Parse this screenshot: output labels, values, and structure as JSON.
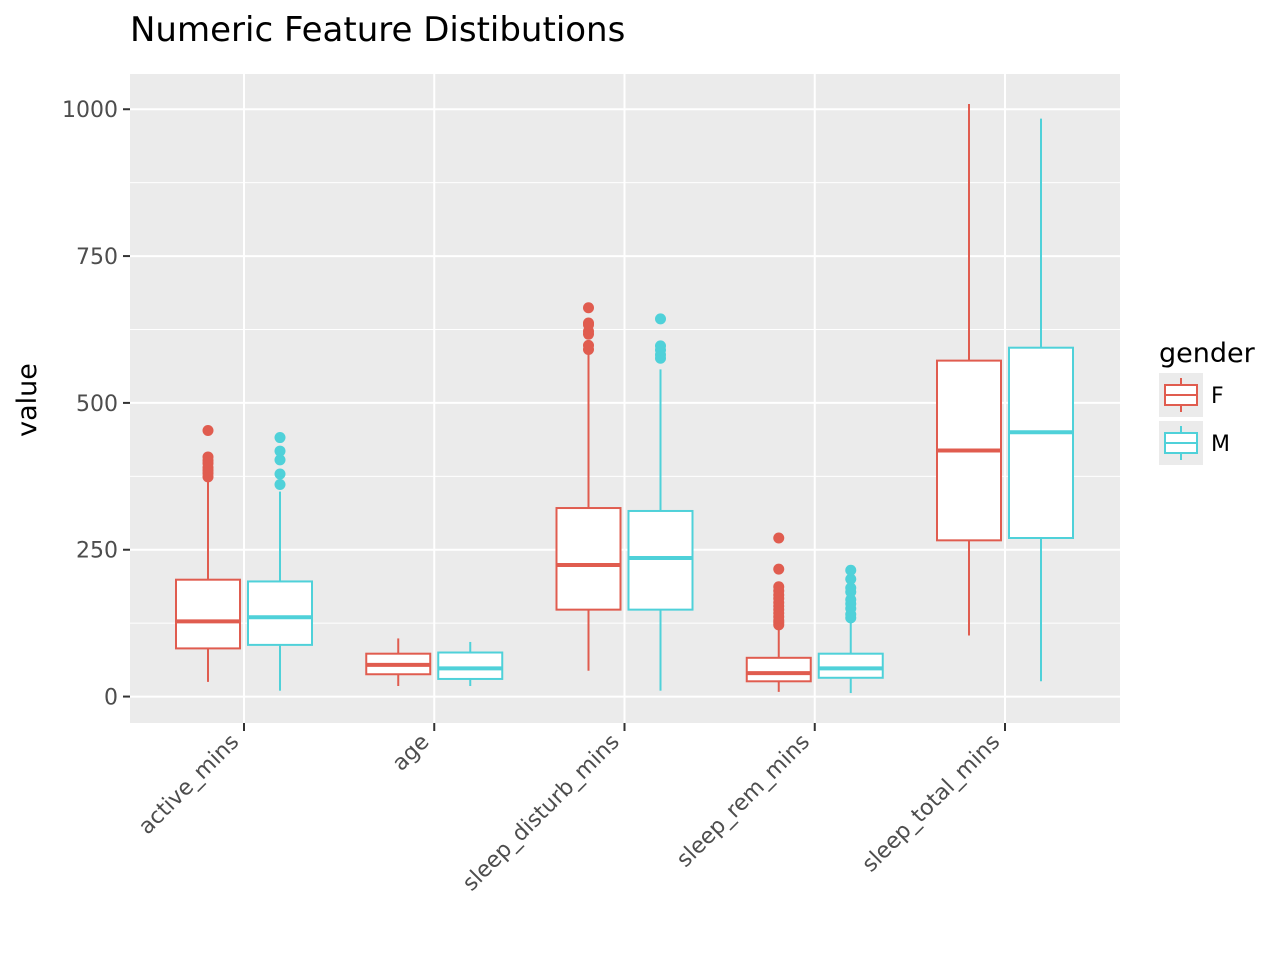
{
  "chart_data": {
    "type": "boxplot",
    "title": "Numeric Feature Distibutions",
    "xlabel": "",
    "ylabel": "value",
    "categories": [
      "active_mins",
      "age",
      "sleep_disturb_mins",
      "sleep_rem_mins",
      "sleep_total_mins"
    ],
    "ylim": [
      -45,
      1060
    ],
    "yticks": [
      0,
      250,
      500,
      750,
      1000
    ],
    "grid": true,
    "legend": {
      "title": "gender",
      "position": "right"
    },
    "series": [
      {
        "name": "F",
        "color": "#e05c4f",
        "boxes": [
          {
            "whisker_low": 25,
            "q1": 82,
            "median": 128,
            "q3": 199,
            "whisker_high": 370,
            "outliers": [
              374,
              380,
              385,
              390,
              397,
              402,
              408,
              453
            ]
          },
          {
            "whisker_low": 18,
            "q1": 38,
            "median": 54,
            "q3": 73,
            "whisker_high": 99,
            "outliers": []
          },
          {
            "whisker_low": 44,
            "q1": 148,
            "median": 224,
            "q3": 321,
            "whisker_high": 584,
            "outliers": [
              591,
              598,
              617,
              622,
              633,
              636,
              662
            ]
          },
          {
            "whisker_low": 8,
            "q1": 26,
            "median": 40,
            "q3": 66,
            "whisker_high": 117,
            "outliers": [
              122,
              126,
              130,
              136,
              142,
              148,
              154,
              160,
              167,
              173,
              180,
              187,
              217,
              270
            ]
          },
          {
            "whisker_low": 104,
            "q1": 266,
            "median": 419,
            "q3": 572,
            "whisker_high": 1009,
            "outliers": []
          }
        ]
      },
      {
        "name": "M",
        "color": "#4fd1d9",
        "boxes": [
          {
            "whisker_low": 10,
            "q1": 88,
            "median": 135,
            "q3": 196,
            "whisker_high": 349,
            "outliers": [
              361,
              379,
              403,
              418,
              441
            ]
          },
          {
            "whisker_low": 18,
            "q1": 30,
            "median": 48,
            "q3": 75,
            "whisker_high": 93,
            "outliers": []
          },
          {
            "whisker_low": 10,
            "q1": 148,
            "median": 236,
            "q3": 316,
            "whisker_high": 557,
            "outliers": [
              576,
              582,
              590,
              597,
              643
            ]
          },
          {
            "whisker_low": 6,
            "q1": 32,
            "median": 48,
            "q3": 73,
            "whisker_high": 130,
            "outliers": [
              134,
              140,
              150,
              158,
              165,
              178,
              185,
              200,
              215
            ]
          },
          {
            "whisker_low": 26,
            "q1": 270,
            "median": 450,
            "q3": 594,
            "whisker_high": 984,
            "outliers": []
          }
        ]
      }
    ]
  }
}
